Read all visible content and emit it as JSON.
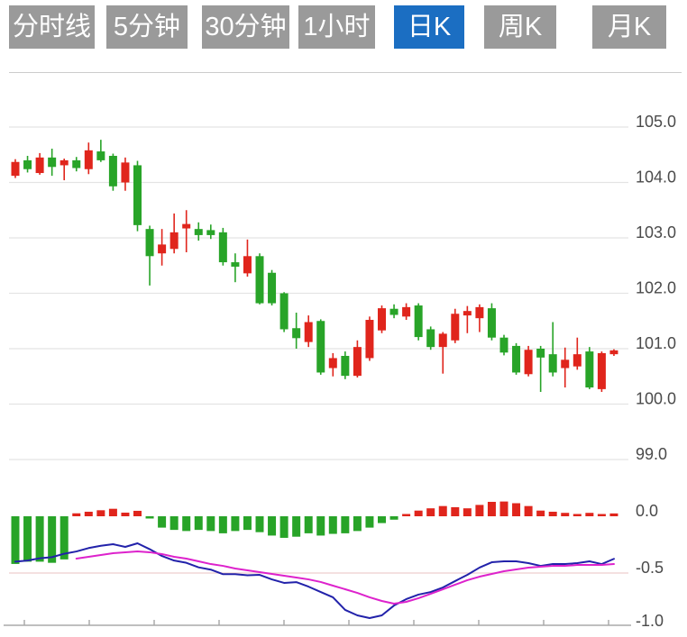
{
  "toolbar": {
    "buttons": [
      {
        "label": "分时线",
        "active": false
      },
      {
        "label": "5分钟",
        "active": false
      },
      {
        "label": "30分钟",
        "active": false
      },
      {
        "label": "1小时",
        "active": false
      },
      {
        "label": "日K",
        "active": true
      },
      {
        "label": "周K",
        "active": false
      },
      {
        "label": "月K",
        "active": false
      }
    ]
  },
  "price_axis": {
    "labels": [
      "105.0",
      "104.0",
      "103.0",
      "102.0",
      "101.0",
      "100.0",
      "99.0"
    ],
    "values": [
      105.0,
      104.0,
      103.0,
      102.0,
      101.0,
      100.0,
      99.0
    ]
  },
  "macd_axis": {
    "labels": [
      "0.0",
      "-0.5",
      "-1.0"
    ],
    "values": [
      0.0,
      -0.5,
      -1.0
    ]
  },
  "chart_data": {
    "type": "candlestick+macd",
    "title": "",
    "price_ylim": [
      99.0,
      105.0
    ],
    "macd_ylim": [
      -1.0,
      0.1
    ],
    "candles": {
      "open": [
        104.12,
        104.4,
        104.17,
        104.45,
        104.31,
        104.4,
        104.24,
        104.56,
        104.48,
        104.0,
        104.31,
        103.16,
        102.72,
        102.8,
        103.17,
        103.16,
        103.14,
        103.1,
        102.56,
        102.36,
        102.67,
        102.37,
        102.0,
        101.37,
        101.12,
        101.5,
        100.65,
        100.87,
        100.51,
        100.83,
        101.33,
        101.72,
        101.58,
        101.78,
        101.35,
        101.03,
        101.15,
        101.6,
        101.55,
        101.73,
        101.2,
        101.05,
        100.54,
        101.0,
        100.9,
        100.65,
        100.68,
        100.95,
        100.27,
        100.9
      ],
      "high": [
        104.42,
        104.48,
        104.53,
        104.61,
        104.43,
        104.46,
        104.72,
        104.77,
        104.52,
        104.45,
        104.39,
        103.22,
        103.16,
        103.44,
        103.5,
        103.28,
        103.24,
        103.18,
        102.72,
        102.97,
        102.72,
        102.42,
        102.02,
        101.65,
        101.6,
        101.53,
        100.92,
        100.95,
        101.15,
        101.58,
        101.78,
        101.8,
        101.82,
        101.82,
        101.4,
        101.3,
        101.72,
        101.77,
        101.8,
        101.82,
        101.25,
        101.1,
        101.05,
        101.05,
        101.48,
        101.02,
        101.2,
        101.03,
        100.95,
        100.99
      ],
      "low": [
        104.08,
        104.18,
        104.14,
        104.12,
        104.04,
        104.2,
        104.15,
        104.37,
        103.85,
        103.85,
        103.12,
        102.14,
        102.5,
        102.72,
        102.74,
        102.95,
        102.98,
        102.5,
        102.2,
        102.3,
        101.8,
        101.78,
        101.3,
        101.0,
        101.03,
        100.53,
        100.5,
        100.45,
        100.48,
        100.78,
        101.28,
        101.55,
        101.52,
        101.15,
        100.98,
        100.55,
        101.1,
        101.28,
        101.3,
        101.15,
        100.88,
        100.53,
        100.5,
        100.22,
        100.5,
        100.3,
        100.62,
        100.27,
        100.22,
        100.87
      ],
      "close": [
        104.37,
        104.24,
        104.45,
        104.28,
        104.4,
        104.26,
        104.58,
        104.4,
        103.93,
        104.36,
        103.23,
        102.67,
        102.88,
        103.1,
        103.25,
        103.05,
        103.05,
        102.56,
        102.48,
        102.67,
        101.82,
        101.82,
        101.35,
        101.19,
        101.48,
        100.57,
        100.83,
        100.51,
        101.03,
        101.52,
        101.73,
        101.61,
        101.75,
        101.21,
        101.03,
        101.27,
        101.63,
        101.68,
        101.75,
        101.2,
        100.93,
        100.57,
        100.98,
        100.84,
        100.57,
        100.8,
        100.9,
        100.3,
        100.92,
        100.97
      ]
    },
    "macd": {
      "histogram": [
        -0.42,
        -0.4,
        -0.4,
        -0.41,
        -0.38,
        0.026,
        0.04,
        0.053,
        0.066,
        0.032,
        0.048,
        -0.012,
        -0.1,
        -0.12,
        -0.13,
        -0.12,
        -0.13,
        -0.15,
        -0.13,
        -0.12,
        -0.14,
        -0.17,
        -0.19,
        -0.18,
        -0.15,
        -0.17,
        -0.155,
        -0.15,
        -0.13,
        -0.1,
        -0.06,
        -0.03,
        0.02,
        0.05,
        0.07,
        0.09,
        0.08,
        0.07,
        0.1,
        0.127,
        0.13,
        0.115,
        0.09,
        0.05,
        0.04,
        0.03,
        0.02,
        0.03,
        0.012,
        0.025
      ],
      "dif": [
        -0.4,
        -0.39,
        -0.37,
        -0.36,
        -0.33,
        -0.31,
        -0.28,
        -0.26,
        -0.246,
        -0.27,
        -0.238,
        -0.29,
        -0.35,
        -0.39,
        -0.41,
        -0.45,
        -0.47,
        -0.51,
        -0.51,
        -0.52,
        -0.516,
        -0.556,
        -0.587,
        -0.58,
        -0.62,
        -0.667,
        -0.714,
        -0.825,
        -0.873,
        -0.897,
        -0.873,
        -0.786,
        -0.73,
        -0.69,
        -0.667,
        -0.627,
        -0.571,
        -0.516,
        -0.452,
        -0.405,
        -0.397,
        -0.397,
        -0.413,
        -0.437,
        -0.421,
        -0.421,
        -0.413,
        -0.397,
        -0.421,
        -0.375
      ],
      "dea": [
        null,
        null,
        null,
        null,
        null,
        -0.373,
        -0.357,
        -0.341,
        -0.325,
        -0.317,
        -0.31,
        -0.317,
        -0.333,
        -0.357,
        -0.373,
        -0.397,
        -0.421,
        -0.437,
        -0.46,
        -0.476,
        -0.492,
        -0.508,
        -0.524,
        -0.54,
        -0.556,
        -0.579,
        -0.611,
        -0.643,
        -0.675,
        -0.714,
        -0.746,
        -0.77,
        -0.754,
        -0.722,
        -0.683,
        -0.643,
        -0.603,
        -0.563,
        -0.532,
        -0.508,
        -0.484,
        -0.468,
        -0.452,
        -0.444,
        -0.437,
        -0.437,
        -0.429,
        -0.429,
        -0.429,
        -0.421
      ]
    },
    "x_axis": {
      "tick_positions": [
        27,
        99,
        171,
        243,
        315,
        387,
        459,
        531,
        603,
        675
      ]
    }
  },
  "colors": {
    "up": "#e0251c",
    "down": "#28a428",
    "dif_line": "#2222aa",
    "dea_line": "#dd22cc",
    "grid": "#e4e4e4",
    "macd_grid": "#f0d6d6",
    "axis": "#aaaaaa",
    "label": "#4a4a4a",
    "button_bg": "#9a9a9a",
    "button_active_bg": "#1b6ec2",
    "button_text": "#ffffff"
  }
}
